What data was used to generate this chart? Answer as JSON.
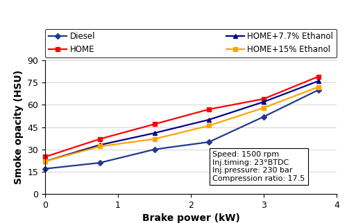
{
  "x": [
    0,
    0.75,
    1.5,
    2.25,
    3.0,
    3.75
  ],
  "diesel": [
    17,
    21,
    30,
    35,
    52,
    70
  ],
  "HOME": [
    25,
    37,
    47,
    57,
    64,
    79
  ],
  "HOME_7p7": [
    22,
    33,
    41,
    50,
    62,
    76
  ],
  "HOME_15": [
    22,
    32,
    37,
    46,
    58,
    72
  ],
  "diesel_color": "#1F3A8C",
  "HOME_color": "#FF0000",
  "HOME_7p7_color": "#00008B",
  "HOME_15_color": "#FFA500",
  "xlabel": "Brake power (kW)",
  "ylabel": "Smoke opacity (HSU)",
  "xlim": [
    0,
    4
  ],
  "ylim": [
    0,
    90
  ],
  "xticks": [
    0,
    1,
    2,
    3,
    4
  ],
  "yticks": [
    0,
    15,
    30,
    45,
    60,
    75,
    90
  ],
  "annotation_lines": [
    "Speed: 1500 rpm",
    "Inj.timing: 23°BTDC",
    "Inj.pressure: 230 bar",
    "Compression ratio: 17.5"
  ],
  "legend_labels": [
    "Diesel",
    "HOME",
    "HOME+7.7% Ethanol",
    "HOME+15% Ethanol"
  ]
}
